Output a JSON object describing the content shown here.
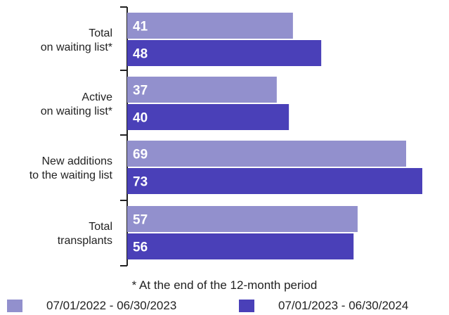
{
  "chart_data": {
    "type": "bar",
    "orientation": "horizontal",
    "categories": [
      [
        "Total",
        "on waiting list*"
      ],
      [
        "Active",
        "on waiting list*"
      ],
      [
        "New additions",
        "to the waiting list"
      ],
      [
        "Total",
        "transplants"
      ]
    ],
    "series": [
      {
        "name": "07/01/2022 - 06/30/2023",
        "color": "#9290cd",
        "values": [
          41,
          37,
          69,
          57
        ]
      },
      {
        "name": "07/01/2023 - 06/30/2024",
        "color": "#4a40b8",
        "values": [
          48,
          40,
          73,
          56
        ]
      }
    ],
    "xlim": [
      0,
      73
    ],
    "grid": false,
    "legend_position": "bottom",
    "footnote": "* At the end of the 12-month period"
  }
}
